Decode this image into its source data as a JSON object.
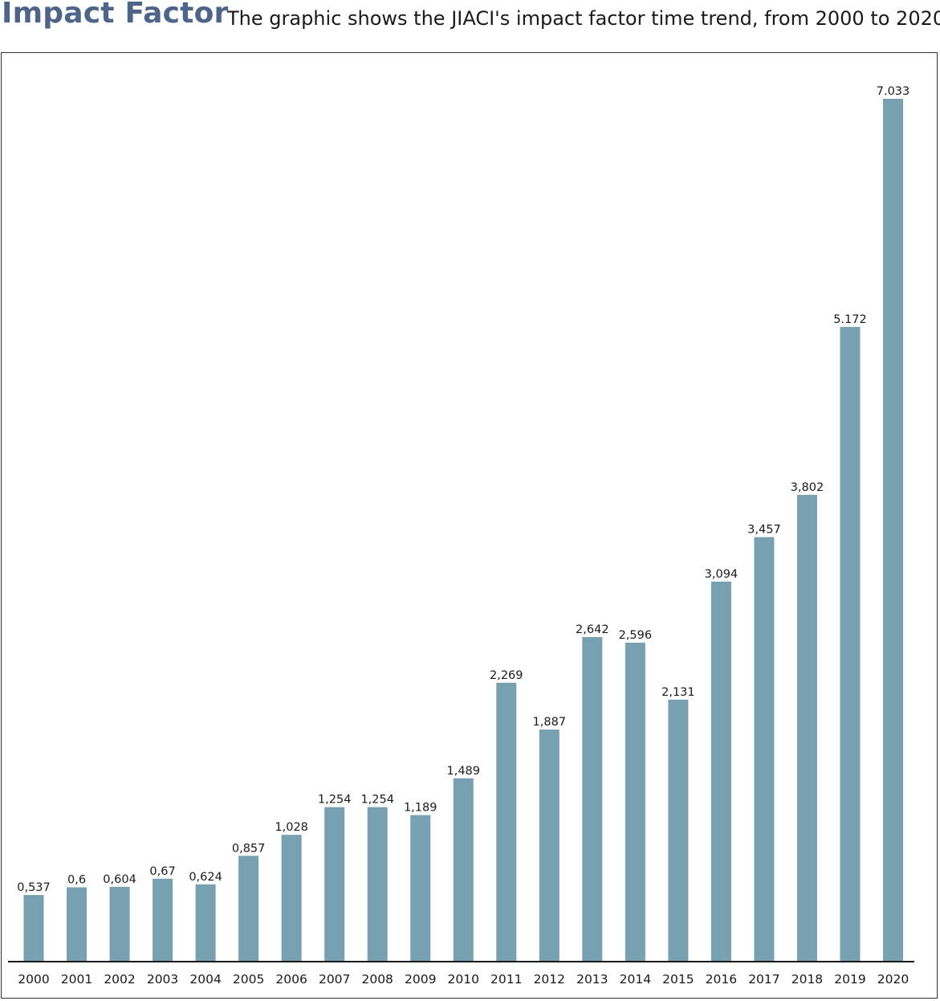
{
  "header": {
    "title": "Impact Factor",
    "subtitle": "The graphic shows the JIACI's impact factor time trend, from 2000 to 2020"
  },
  "colors": {
    "title": "#4e6488",
    "bar": "#77a0b0",
    "text": "#1a1a1a"
  },
  "chart_data": {
    "type": "bar",
    "title": "Impact Factor",
    "subtitle": "The graphic shows the JIACI's impact factor time trend, from 2000 to 2020",
    "categories": [
      "2000",
      "2001",
      "2002",
      "2003",
      "2004",
      "2005",
      "2006",
      "2007",
      "2008",
      "2009",
      "2010",
      "2011",
      "2012",
      "2013",
      "2014",
      "2015",
      "2016",
      "2017",
      "2018",
      "2019",
      "2020"
    ],
    "values": [
      0.537,
      0.6,
      0.604,
      0.67,
      0.624,
      0.857,
      1.028,
      1.254,
      1.254,
      1.189,
      1.489,
      2.269,
      1.887,
      2.642,
      2.596,
      2.131,
      3.094,
      3.457,
      3.802,
      5.172,
      7.033
    ],
    "data_labels": [
      "0,537",
      "0,6",
      "0,604",
      "0,67",
      "0,624",
      "0,857",
      "1,028",
      "1,254",
      "1,254",
      "1,189",
      "1,489",
      "2,269",
      "1,887",
      "2,642",
      "2,596",
      "2,131",
      "3,094",
      "3,457",
      "3,802",
      "5.172",
      "7.033"
    ],
    "xlabel": "",
    "ylabel": "",
    "ylim": [
      0,
      7.033
    ],
    "grid": false,
    "legend": "none"
  }
}
